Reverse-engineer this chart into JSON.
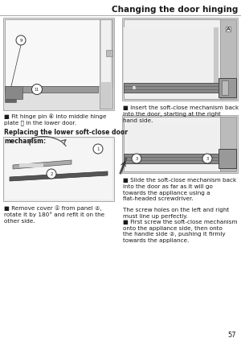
{
  "title": "Changing the door hinging",
  "page_number": "57",
  "bg": "#ffffff",
  "gray_light": "#e8e8e8",
  "gray_mid": "#b0b0b0",
  "gray_dark": "#707070",
  "gray_darker": "#404040",
  "title_fontsize": 7.5,
  "body_fontsize": 5.2,
  "section_fontsize": 5.5,
  "bullet": "■",
  "top_left_caption": "Fit hinge pin ⑥ into middle hinge\nplate ⓿ in the lower door.",
  "section_header": "Replacing the lower soft-close door\nmechanism:",
  "bottom_left_caption": "Remove cover ① from panel ②,\nrotate it by 180° and refit it on the\nother side.",
  "top_right_cap": "Insert the soft-close mechanism back\ninto the door, starting at the right\nhand side.",
  "bottom_right_cap1": "Slide the soft-close mechanism back\ninto the door as far as it will go\ntowards the appliance using a\nflat-headed screwdriver.",
  "bottom_right_cap2": "The screw holes on the left and right\nmust line up perfectly.",
  "bottom_right_cap3": "First screw the soft-close mechanism\nonto the appliance side, then onto\nthe handle side ②, pushing it firmly\ntowards the appliance."
}
